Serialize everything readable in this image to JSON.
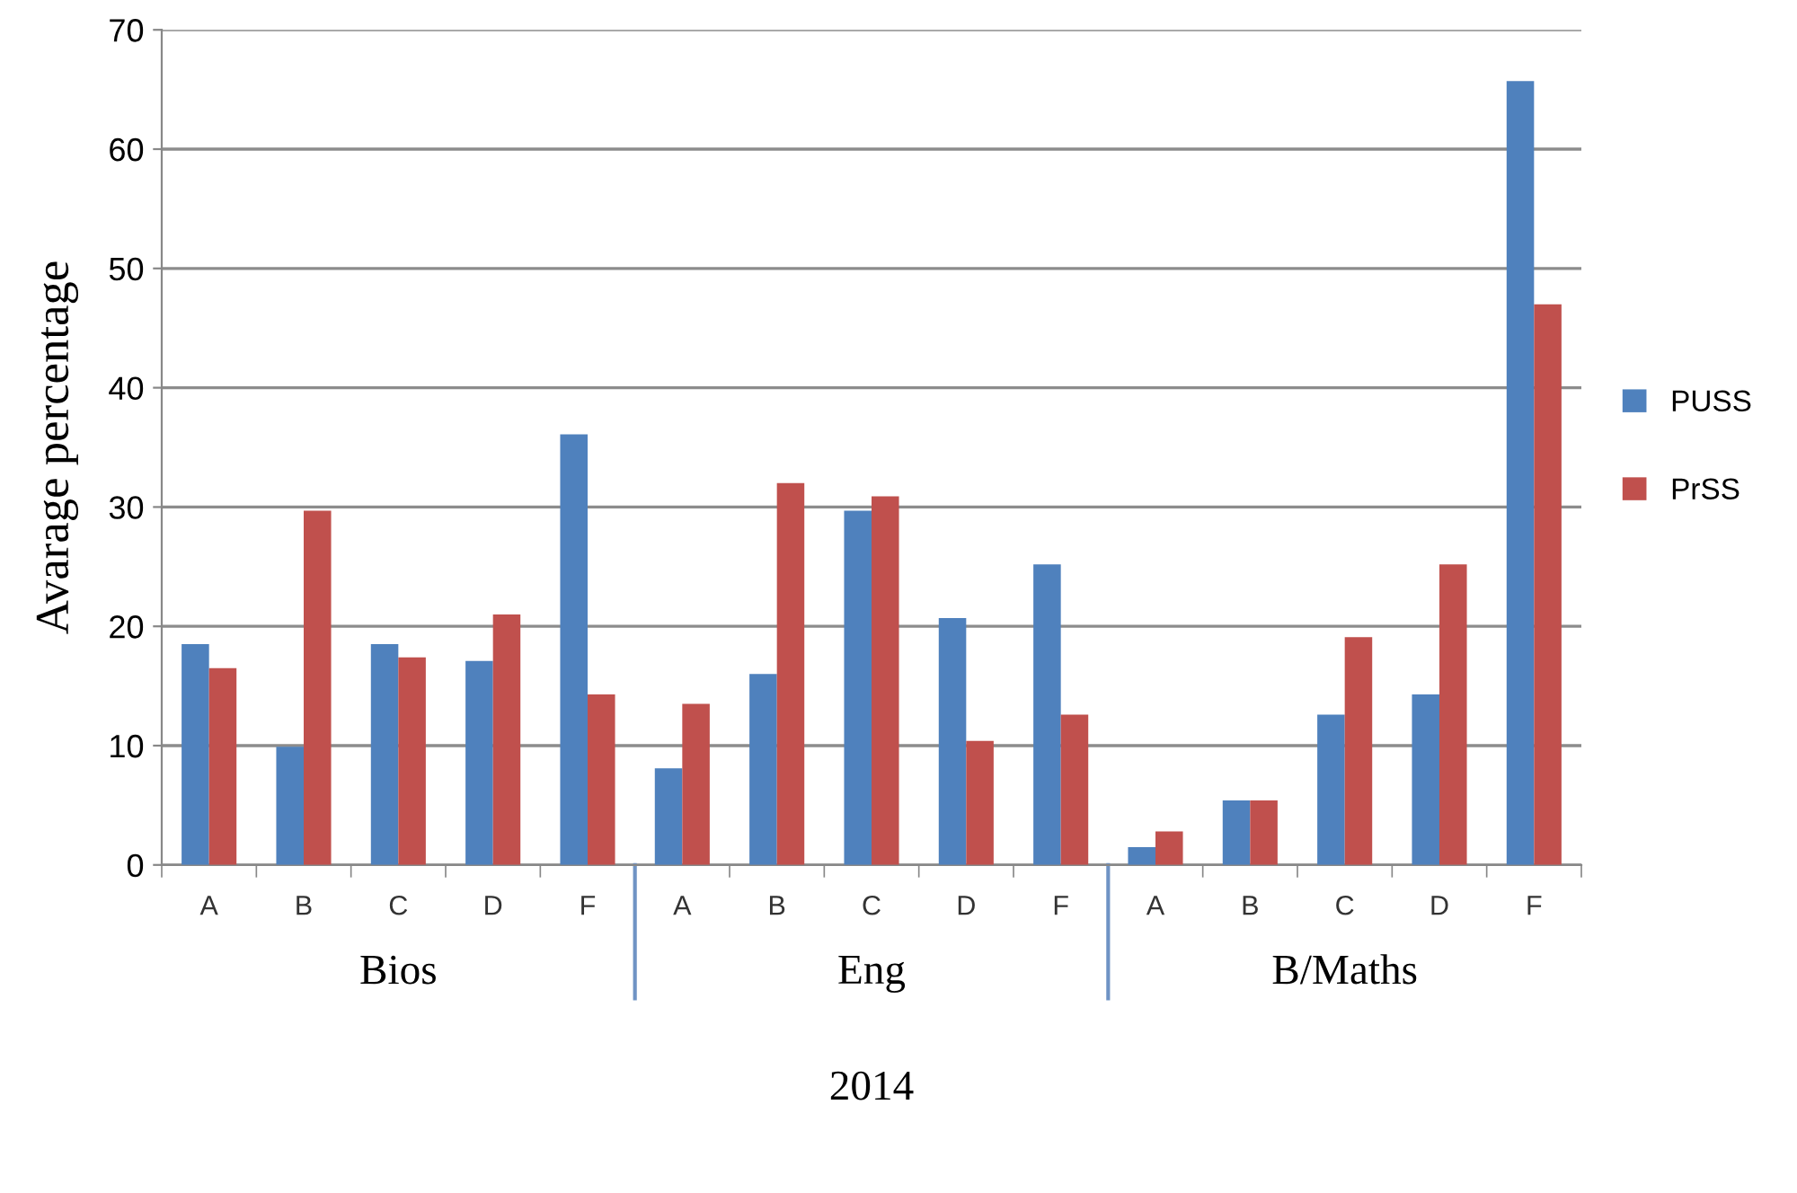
{
  "chart_data": {
    "type": "bar",
    "xlabel": "2014",
    "ylabel": "Avarage percentage",
    "categories": [
      "A",
      "B",
      "C",
      "D",
      "F",
      "A",
      "B",
      "C",
      "D",
      "F",
      "A",
      "B",
      "C",
      "D",
      "F"
    ],
    "annotations": [
      "Bios",
      "Eng",
      "B/Maths"
    ],
    "series": [
      {
        "name": "PUSS",
        "color": "#4f81bd",
        "values": [
          18.5,
          9.9,
          18.5,
          17.1,
          36.1,
          8.1,
          16.0,
          29.7,
          20.7,
          25.2,
          1.5,
          5.4,
          12.6,
          14.3,
          65.7
        ]
      },
      {
        "name": "PrSS",
        "color": "#c0504d",
        "values": [
          16.5,
          29.7,
          17.4,
          21.0,
          14.3,
          13.5,
          32.0,
          30.9,
          10.4,
          12.6,
          2.8,
          5.4,
          19.1,
          25.2,
          47.0
        ]
      }
    ],
    "ylim": [
      0,
      70
    ],
    "yticks": [
      0,
      10,
      20,
      30,
      40,
      50,
      60,
      70
    ],
    "grid": "y",
    "legend": "right"
  }
}
